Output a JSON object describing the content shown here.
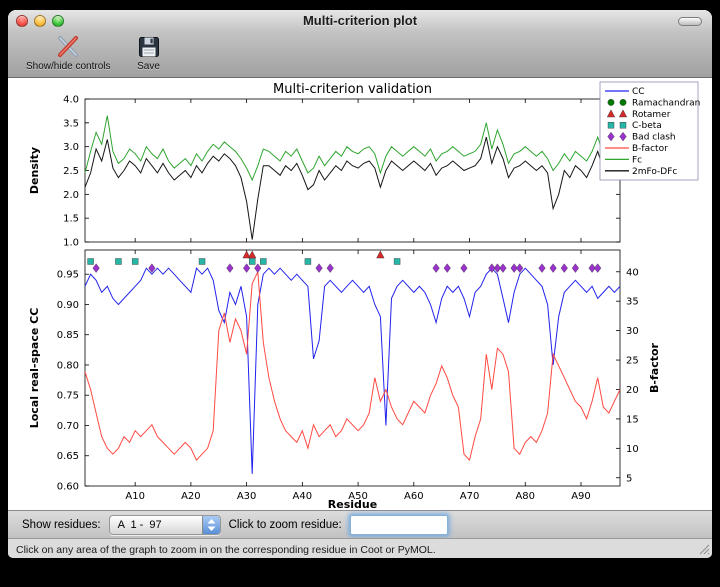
{
  "window": {
    "title": "Multi-criterion plot",
    "toolbar": [
      {
        "label": "Show/hide controls",
        "icon": "crossed-tools-icon"
      },
      {
        "label": "Save",
        "icon": "floppy-disk-icon"
      }
    ]
  },
  "controls": {
    "show_residues_label": "Show residues:",
    "residue_range_value": "A  1 -  97",
    "zoom_label": "Click to zoom residue:",
    "zoom_input_value": ""
  },
  "status_bar": "Click on any area of the graph to zoom in on the corresponding residue in Coot or PyMOL.",
  "colors": {
    "stepper_accent": "#5a8fd6"
  },
  "chart_data": {
    "type": "line",
    "title": "Multi-criterion validation",
    "xlabel": "Residue",
    "n_residues": 97,
    "x_range": [
      1,
      97
    ],
    "x_ticks": [
      10,
      20,
      30,
      40,
      50,
      60,
      70,
      80,
      90
    ],
    "x_tick_labels": [
      "A10",
      "A20",
      "A30",
      "A40",
      "A50",
      "A60",
      "A70",
      "A80",
      "A90"
    ],
    "top_plot": {
      "ylabel": "Density",
      "ylim": [
        1.0,
        4.0
      ],
      "yticks": [
        1.0,
        1.5,
        2.0,
        2.5,
        3.0,
        3.5,
        4.0
      ],
      "series": [
        {
          "name": "Fc",
          "color": "#2fa42f",
          "values": [
            2.45,
            2.9,
            3.3,
            3.05,
            3.65,
            2.9,
            2.65,
            2.75,
            2.95,
            2.85,
            2.7,
            3.0,
            2.85,
            2.75,
            2.95,
            2.7,
            2.55,
            2.65,
            2.75,
            2.6,
            2.85,
            2.7,
            2.9,
            3.05,
            2.95,
            3.1,
            3.0,
            2.9,
            2.75,
            2.55,
            2.3,
            2.6,
            2.95,
            2.9,
            2.8,
            2.7,
            2.9,
            2.8,
            2.95,
            2.7,
            2.45,
            2.55,
            2.8,
            2.6,
            2.75,
            2.9,
            2.8,
            3.0,
            2.9,
            2.85,
            2.95,
            3.0,
            2.85,
            2.45,
            2.8,
            3.0,
            2.9,
            2.8,
            2.9,
            3.0,
            2.9,
            2.8,
            2.95,
            2.7,
            2.85,
            2.9,
            3.0,
            2.9,
            2.8,
            2.85,
            2.9,
            3.05,
            3.5,
            2.95,
            3.35,
            3.05,
            2.65,
            2.85,
            2.9,
            3.0,
            2.9,
            2.8,
            2.9,
            2.75,
            2.5,
            2.65,
            2.85,
            2.7,
            2.9,
            2.8,
            2.7,
            2.9,
            3.2,
            2.85,
            2.95,
            3.05,
            3.1
          ]
        },
        {
          "name": "2mFo-DFc",
          "color": "#151515",
          "values": [
            2.15,
            2.45,
            2.95,
            2.7,
            3.15,
            2.55,
            2.35,
            2.5,
            2.7,
            2.6,
            2.45,
            2.75,
            2.6,
            2.45,
            2.65,
            2.45,
            2.3,
            2.4,
            2.5,
            2.35,
            2.6,
            2.45,
            2.65,
            2.8,
            2.7,
            2.85,
            2.75,
            2.6,
            2.35,
            1.85,
            1.05,
            1.9,
            2.6,
            2.6,
            2.5,
            2.4,
            2.6,
            2.5,
            2.65,
            2.4,
            2.1,
            2.2,
            2.5,
            2.3,
            2.45,
            2.6,
            2.5,
            2.7,
            2.6,
            2.55,
            2.65,
            2.7,
            2.55,
            2.15,
            2.5,
            2.7,
            2.6,
            2.5,
            2.6,
            2.7,
            2.6,
            2.5,
            2.65,
            2.4,
            2.55,
            2.6,
            2.7,
            2.6,
            2.5,
            2.55,
            2.6,
            2.75,
            3.2,
            2.65,
            3.0,
            2.75,
            2.35,
            2.55,
            2.6,
            2.7,
            2.6,
            2.5,
            2.6,
            2.45,
            1.7,
            2.0,
            2.5,
            2.35,
            2.6,
            2.5,
            2.35,
            2.6,
            2.9,
            2.55,
            2.65,
            2.75,
            2.8
          ]
        }
      ]
    },
    "bottom_plot": {
      "ylabel_left": "Local real-space CC",
      "ylabel_right": "B-factor",
      "ylim_left": [
        0.6,
        0.99
      ],
      "yticks_left": [
        0.6,
        0.65,
        0.7,
        0.75,
        0.8,
        0.85,
        0.9,
        0.95
      ],
      "ylim_right": [
        3.6,
        43.7
      ],
      "yticks_right": [
        5,
        10,
        15,
        20,
        25,
        30,
        35,
        40
      ],
      "series": [
        {
          "name": "CC",
          "axis": "left",
          "color": "#2222ee",
          "values": [
            0.93,
            0.95,
            0.94,
            0.92,
            0.93,
            0.91,
            0.9,
            0.91,
            0.92,
            0.93,
            0.94,
            0.96,
            0.95,
            0.96,
            0.95,
            0.96,
            0.95,
            0.94,
            0.93,
            0.92,
            0.96,
            0.95,
            0.96,
            0.94,
            0.89,
            0.87,
            0.92,
            0.9,
            0.93,
            0.88,
            0.62,
            0.9,
            0.95,
            0.96,
            0.95,
            0.96,
            0.95,
            0.94,
            0.95,
            0.94,
            0.93,
            0.81,
            0.84,
            0.93,
            0.94,
            0.93,
            0.92,
            0.93,
            0.94,
            0.93,
            0.92,
            0.93,
            0.9,
            0.88,
            0.7,
            0.91,
            0.93,
            0.94,
            0.93,
            0.92,
            0.93,
            0.92,
            0.9,
            0.87,
            0.91,
            0.93,
            0.92,
            0.93,
            0.91,
            0.88,
            0.92,
            0.93,
            0.95,
            0.96,
            0.95,
            0.91,
            0.87,
            0.92,
            0.95,
            0.96,
            0.95,
            0.94,
            0.93,
            0.9,
            0.8,
            0.88,
            0.92,
            0.93,
            0.94,
            0.93,
            0.92,
            0.93,
            0.91,
            0.92,
            0.93,
            0.92,
            0.93
          ]
        },
        {
          "name": "B-factor",
          "axis": "right",
          "color": "#ff4a42",
          "values": [
            23,
            20,
            16,
            12,
            10,
            9,
            10,
            12,
            11,
            13,
            12,
            13,
            14,
            12,
            11,
            10,
            9,
            10,
            11,
            10,
            8,
            9,
            10,
            13,
            30,
            33,
            28,
            32,
            30,
            26,
            38,
            40,
            28,
            22,
            18,
            15,
            13,
            12,
            11,
            13,
            10,
            14,
            12,
            13,
            14,
            12,
            13,
            15,
            14,
            13,
            14,
            16,
            22,
            18,
            20,
            17,
            15,
            14,
            16,
            18,
            17,
            16,
            19,
            21,
            24,
            22,
            19,
            17,
            9,
            8,
            12,
            15,
            26,
            20,
            27,
            26,
            23,
            10,
            9,
            11,
            12,
            11,
            13,
            16,
            26,
            24,
            22,
            20,
            18,
            17,
            15,
            18,
            22,
            17,
            16,
            18,
            20
          ]
        }
      ],
      "markers": [
        {
          "name": "Rotamer",
          "shape": "triangle",
          "color": "#d42a2a",
          "row_y": 0.982,
          "residues": [
            30,
            31,
            54
          ]
        },
        {
          "name": "C-beta",
          "shape": "square",
          "color": "#27b5a5",
          "row_y": 0.971,
          "residues": [
            2,
            7,
            10,
            22,
            31,
            33,
            41,
            57
          ]
        },
        {
          "name": "Bad clash",
          "shape": "diamond",
          "color": "#9933cc",
          "row_y": 0.96,
          "residues": [
            3,
            13,
            27,
            30,
            32,
            43,
            45,
            64,
            66,
            69,
            74,
            75,
            76,
            78,
            79,
            83,
            85,
            87,
            89,
            92,
            93
          ]
        },
        {
          "name": "Ramachandran",
          "shape": "circle",
          "color": "#007700",
          "row_y": 0.982,
          "residues": []
        }
      ]
    },
    "legend": [
      {
        "label": "CC",
        "type": "line",
        "color": "#2222ee"
      },
      {
        "label": "Ramachandran",
        "type": "circle",
        "color": "#007700"
      },
      {
        "label": "Rotamer",
        "type": "triangle",
        "color": "#d42a2a"
      },
      {
        "label": "C-beta",
        "type": "square",
        "color": "#27b5a5"
      },
      {
        "label": "Bad clash",
        "type": "diamond",
        "color": "#9933cc"
      },
      {
        "label": "B-factor",
        "type": "line",
        "color": "#ff4a42"
      },
      {
        "label": "Fc",
        "type": "line",
        "color": "#2fa42f"
      },
      {
        "label": "2mFo-DFc",
        "type": "line",
        "color": "#151515"
      }
    ]
  }
}
